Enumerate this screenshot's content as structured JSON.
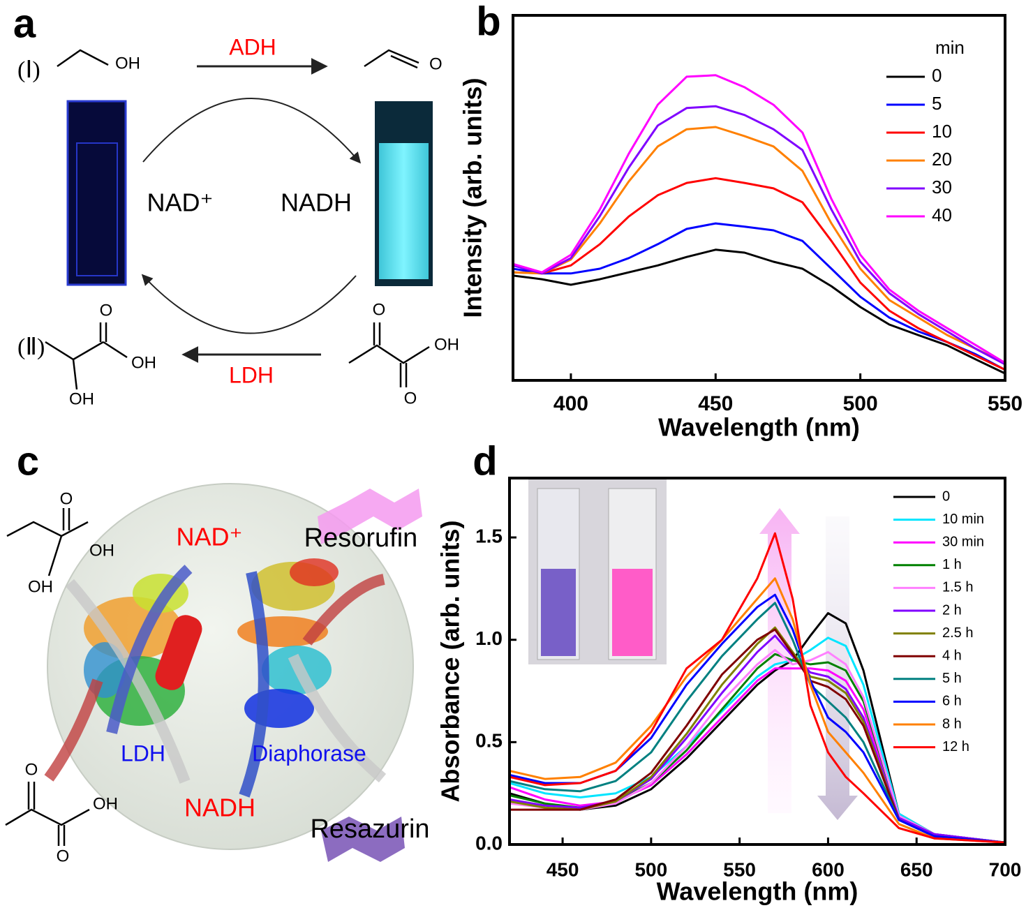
{
  "panel_a": {
    "label": "a",
    "reactions": [
      "(Ⅰ)",
      "(Ⅱ)"
    ],
    "enzymes": [
      "ADH",
      "LDH"
    ],
    "cofactors": [
      "NAD⁺",
      "NADH"
    ],
    "atoms": [
      "OH",
      "O",
      "O",
      "OH",
      "OH",
      "O",
      "OH",
      "O"
    ]
  },
  "panel_c": {
    "label": "c",
    "cofactors": [
      "NAD⁺",
      "NADH"
    ],
    "enzymes": [
      "LDH",
      "Diaphorase"
    ],
    "dyes": [
      "Resorufin",
      "Resazurin"
    ],
    "atoms": [
      "O",
      "OH",
      "OH",
      "O",
      "OH",
      "O"
    ]
  },
  "chart_data": [
    {
      "type": "line",
      "panel_label": "b",
      "xlabel": "Wavelength (nm)",
      "ylabel": "Intensity (arb. units)",
      "xlim": [
        380,
        550
      ],
      "ylim": [
        0,
        100
      ],
      "xticks": [
        400,
        450,
        500,
        550
      ],
      "grid": false,
      "legend_title": "min",
      "legend": "upper right",
      "x": [
        380,
        390,
        400,
        410,
        420,
        430,
        440,
        450,
        460,
        470,
        480,
        490,
        500,
        510,
        520,
        530,
        540,
        550
      ],
      "series": [
        {
          "name": "0",
          "color": "#000000",
          "values": [
            28.7,
            27.7,
            26.2,
            27.7,
            29.6,
            31.5,
            33.8,
            35.8,
            35,
            32.5,
            30.6,
            25.8,
            20.1,
            15.3,
            12.4,
            9.6,
            5.7,
            1.9
          ]
        },
        {
          "name": "5",
          "color": "#0000ff",
          "values": [
            30.6,
            29.3,
            29.3,
            30.6,
            33.5,
            37.3,
            41.5,
            43,
            42.1,
            41.1,
            38.2,
            30.6,
            22.9,
            17.2,
            13.4,
            10.5,
            7.1,
            2.9
          ]
        },
        {
          "name": "10",
          "color": "#ff0000",
          "values": [
            29.6,
            29.3,
            31.5,
            37.3,
            44.9,
            50.7,
            54.1,
            55.4,
            54.1,
            52.6,
            48.8,
            38.2,
            26.8,
            19.1,
            14.3,
            10.5,
            6.7,
            2.9
          ]
        },
        {
          "name": "20",
          "color": "#ff8000",
          "values": [
            29.6,
            29.3,
            33.1,
            43,
            54.5,
            64.1,
            68.8,
            69.4,
            66.9,
            64.1,
            57.4,
            43,
            30.6,
            22,
            17.2,
            12.4,
            8.6,
            4.8
          ]
        },
        {
          "name": "30",
          "color": "#8000ff",
          "values": [
            31.5,
            29.3,
            33.5,
            45,
            58.3,
            69.8,
            74.6,
            75.1,
            72.7,
            68.8,
            63.1,
            46.8,
            32.5,
            23.9,
            18.2,
            13.4,
            8.6,
            4.4
          ]
        },
        {
          "name": "40",
          "color": "#ff00ff",
          "values": [
            31.9,
            29.6,
            34.4,
            46.8,
            62.1,
            75.5,
            83.2,
            83.6,
            80.3,
            75.5,
            67.9,
            49.7,
            34.4,
            24.9,
            19.1,
            14.3,
            9.6,
            4.8
          ]
        }
      ]
    },
    {
      "type": "line",
      "panel_label": "d",
      "xlabel": "Wavelength (nm)",
      "ylabel": "Absorbance (arb. units)",
      "xlim": [
        420,
        700
      ],
      "ylim": [
        0,
        1.79
      ],
      "xticks": [
        450,
        500,
        550,
        600,
        650,
        700
      ],
      "yticks": [
        {
          "value": 0,
          "label": "0.0"
        },
        0.5,
        {
          "value": 1,
          "label": "1.0"
        },
        1.5
      ],
      "grid": false,
      "legend": "upper right",
      "x": [
        420,
        440,
        460,
        480,
        500,
        520,
        540,
        560,
        570,
        580,
        590,
        600,
        610,
        620,
        640,
        660,
        700
      ],
      "series": [
        {
          "name": "0",
          "color": "#000000",
          "values": [
            0.25,
            0.2,
            0.17,
            0.19,
            0.27,
            0.42,
            0.6,
            0.78,
            0.85,
            0.9,
            1.02,
            1.13,
            1.08,
            0.85,
            0.15,
            0.05,
            0.01
          ]
        },
        {
          "name": "10 min",
          "color": "#00e5ff",
          "values": [
            0.3,
            0.25,
            0.23,
            0.25,
            0.33,
            0.48,
            0.65,
            0.82,
            0.88,
            0.9,
            0.95,
            1.01,
            0.97,
            0.78,
            0.15,
            0.05,
            0.01
          ]
        },
        {
          "name": "30 min",
          "color": "#ff00ff",
          "values": [
            0.28,
            0.22,
            0.19,
            0.21,
            0.29,
            0.44,
            0.62,
            0.8,
            0.86,
            0.86,
            0.86,
            0.85,
            0.8,
            0.66,
            0.14,
            0.05,
            0.01
          ]
        },
        {
          "name": "1 h",
          "color": "#008000",
          "values": [
            0.24,
            0.2,
            0.18,
            0.21,
            0.3,
            0.46,
            0.66,
            0.86,
            0.93,
            0.9,
            0.88,
            0.89,
            0.85,
            0.7,
            0.14,
            0.05,
            0.01
          ]
        },
        {
          "name": "1.5 h",
          "color": "#ff80ff",
          "values": [
            0.2,
            0.18,
            0.17,
            0.2,
            0.3,
            0.48,
            0.7,
            0.88,
            0.95,
            0.88,
            0.9,
            0.94,
            0.88,
            0.72,
            0.14,
            0.05,
            0.01
          ]
        },
        {
          "name": "2 h",
          "color": "#8000ff",
          "values": [
            0.22,
            0.19,
            0.18,
            0.21,
            0.32,
            0.52,
            0.74,
            0.94,
            1.02,
            0.92,
            0.84,
            0.82,
            0.76,
            0.62,
            0.13,
            0.05,
            0.01
          ]
        },
        {
          "name": "2.5 h",
          "color": "#808000",
          "values": [
            0.21,
            0.18,
            0.17,
            0.21,
            0.33,
            0.54,
            0.78,
            0.98,
            1.06,
            0.94,
            0.82,
            0.8,
            0.74,
            0.6,
            0.12,
            0.04,
            0.01
          ]
        },
        {
          "name": "4 h",
          "color": "#800000",
          "values": [
            0.17,
            0.17,
            0.17,
            0.22,
            0.35,
            0.58,
            0.83,
            1,
            1.05,
            0.93,
            0.8,
            0.77,
            0.71,
            0.58,
            0.12,
            0.04,
            0.01
          ]
        },
        {
          "name": "5 h",
          "color": "#008080",
          "values": [
            0.31,
            0.27,
            0.26,
            0.31,
            0.45,
            0.7,
            0.92,
            1.1,
            1.18,
            1,
            0.78,
            0.7,
            0.62,
            0.5,
            0.12,
            0.04,
            0.01
          ]
        },
        {
          "name": "6 h",
          "color": "#0000ff",
          "values": [
            0.34,
            0.3,
            0.3,
            0.36,
            0.52,
            0.78,
            0.98,
            1.16,
            1.22,
            1.05,
            0.8,
            0.62,
            0.55,
            0.45,
            0.12,
            0.04,
            0.01
          ]
        },
        {
          "name": "8 h",
          "color": "#ff8000",
          "values": [
            0.36,
            0.32,
            0.33,
            0.4,
            0.58,
            0.82,
            1,
            1.2,
            1.3,
            1.1,
            0.78,
            0.55,
            0.45,
            0.35,
            0.1,
            0.03,
            0.01
          ]
        },
        {
          "name": "12 h",
          "color": "#ff0000",
          "values": [
            0.33,
            0.29,
            0.3,
            0.36,
            0.55,
            0.86,
            1,
            1.3,
            1.52,
            1.2,
            0.68,
            0.45,
            0.33,
            0.25,
            0.08,
            0.03,
            0.01
          ]
        }
      ]
    }
  ]
}
